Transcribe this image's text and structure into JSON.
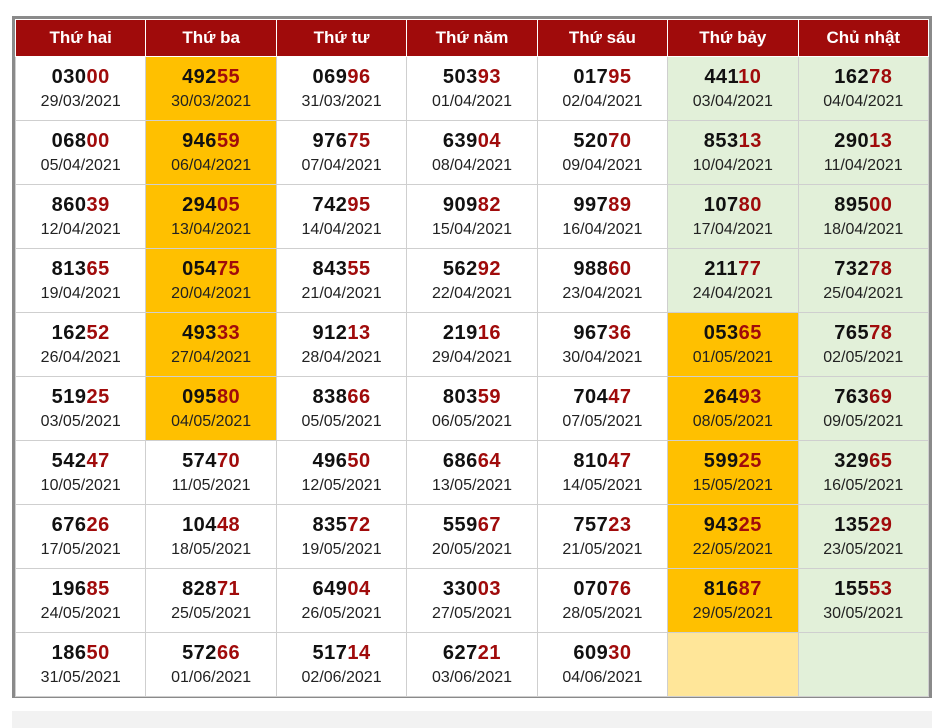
{
  "headers": [
    "Thứ hai",
    "Thứ ba",
    "Thứ tư",
    "Thứ năm",
    "Thứ sáu",
    "Thứ bảy",
    "Chủ nhật"
  ],
  "colors": {
    "header": "#a00b0b",
    "highlight": "#ffc000",
    "weekend": "#e2f0d9",
    "empty_highlight": "#ffe699",
    "tail": "#a00b0b"
  },
  "rows": [
    [
      {
        "head": "030",
        "tail": "00",
        "date": "29/03/2021"
      },
      {
        "head": "492",
        "tail": "55",
        "date": "30/03/2021",
        "hl": true
      },
      {
        "head": "069",
        "tail": "96",
        "date": "31/03/2021"
      },
      {
        "head": "503",
        "tail": "93",
        "date": "01/04/2021"
      },
      {
        "head": "017",
        "tail": "95",
        "date": "02/04/2021"
      },
      {
        "head": "441",
        "tail": "10",
        "date": "03/04/2021"
      },
      {
        "head": "162",
        "tail": "78",
        "date": "04/04/2021"
      }
    ],
    [
      {
        "head": "068",
        "tail": "00",
        "date": "05/04/2021"
      },
      {
        "head": "946",
        "tail": "59",
        "date": "06/04/2021",
        "hl": true
      },
      {
        "head": "976",
        "tail": "75",
        "date": "07/04/2021"
      },
      {
        "head": "639",
        "tail": "04",
        "date": "08/04/2021"
      },
      {
        "head": "520",
        "tail": "70",
        "date": "09/04/2021"
      },
      {
        "head": "853",
        "tail": "13",
        "date": "10/04/2021"
      },
      {
        "head": "290",
        "tail": "13",
        "date": "11/04/2021"
      }
    ],
    [
      {
        "head": "860",
        "tail": "39",
        "date": "12/04/2021"
      },
      {
        "head": "294",
        "tail": "05",
        "date": "13/04/2021",
        "hl": true
      },
      {
        "head": "742",
        "tail": "95",
        "date": "14/04/2021"
      },
      {
        "head": "909",
        "tail": "82",
        "date": "15/04/2021"
      },
      {
        "head": "997",
        "tail": "89",
        "date": "16/04/2021"
      },
      {
        "head": "107",
        "tail": "80",
        "date": "17/04/2021"
      },
      {
        "head": "895",
        "tail": "00",
        "date": "18/04/2021"
      }
    ],
    [
      {
        "head": "813",
        "tail": "65",
        "date": "19/04/2021"
      },
      {
        "head": "054",
        "tail": "75",
        "date": "20/04/2021",
        "hl": true
      },
      {
        "head": "843",
        "tail": "55",
        "date": "21/04/2021"
      },
      {
        "head": "562",
        "tail": "92",
        "date": "22/04/2021"
      },
      {
        "head": "988",
        "tail": "60",
        "date": "23/04/2021"
      },
      {
        "head": "211",
        "tail": "77",
        "date": "24/04/2021"
      },
      {
        "head": "732",
        "tail": "78",
        "date": "25/04/2021"
      }
    ],
    [
      {
        "head": "162",
        "tail": "52",
        "date": "26/04/2021"
      },
      {
        "head": "493",
        "tail": "33",
        "date": "27/04/2021",
        "hl": true
      },
      {
        "head": "912",
        "tail": "13",
        "date": "28/04/2021"
      },
      {
        "head": "219",
        "tail": "16",
        "date": "29/04/2021"
      },
      {
        "head": "967",
        "tail": "36",
        "date": "30/04/2021"
      },
      {
        "head": "053",
        "tail": "65",
        "date": "01/05/2021",
        "hl": true
      },
      {
        "head": "765",
        "tail": "78",
        "date": "02/05/2021"
      }
    ],
    [
      {
        "head": "519",
        "tail": "25",
        "date": "03/05/2021"
      },
      {
        "head": "095",
        "tail": "80",
        "date": "04/05/2021",
        "hl": true
      },
      {
        "head": "838",
        "tail": "66",
        "date": "05/05/2021"
      },
      {
        "head": "803",
        "tail": "59",
        "date": "06/05/2021"
      },
      {
        "head": "704",
        "tail": "47",
        "date": "07/05/2021"
      },
      {
        "head": "264",
        "tail": "93",
        "date": "08/05/2021",
        "hl": true
      },
      {
        "head": "763",
        "tail": "69",
        "date": "09/05/2021"
      }
    ],
    [
      {
        "head": "542",
        "tail": "47",
        "date": "10/05/2021"
      },
      {
        "head": "574",
        "tail": "70",
        "date": "11/05/2021"
      },
      {
        "head": "496",
        "tail": "50",
        "date": "12/05/2021"
      },
      {
        "head": "686",
        "tail": "64",
        "date": "13/05/2021"
      },
      {
        "head": "810",
        "tail": "47",
        "date": "14/05/2021"
      },
      {
        "head": "599",
        "tail": "25",
        "date": "15/05/2021",
        "hl": true
      },
      {
        "head": "329",
        "tail": "65",
        "date": "16/05/2021"
      }
    ],
    [
      {
        "head": "676",
        "tail": "26",
        "date": "17/05/2021"
      },
      {
        "head": "104",
        "tail": "48",
        "date": "18/05/2021"
      },
      {
        "head": "835",
        "tail": "72",
        "date": "19/05/2021"
      },
      {
        "head": "559",
        "tail": "67",
        "date": "20/05/2021"
      },
      {
        "head": "757",
        "tail": "23",
        "date": "21/05/2021"
      },
      {
        "head": "943",
        "tail": "25",
        "date": "22/05/2021",
        "hl": true
      },
      {
        "head": "135",
        "tail": "29",
        "date": "23/05/2021"
      }
    ],
    [
      {
        "head": "196",
        "tail": "85",
        "date": "24/05/2021"
      },
      {
        "head": "828",
        "tail": "71",
        "date": "25/05/2021"
      },
      {
        "head": "649",
        "tail": "04",
        "date": "26/05/2021"
      },
      {
        "head": "330",
        "tail": "03",
        "date": "27/05/2021"
      },
      {
        "head": "070",
        "tail": "76",
        "date": "28/05/2021"
      },
      {
        "head": "816",
        "tail": "87",
        "date": "29/05/2021",
        "hl": true
      },
      {
        "head": "155",
        "tail": "53",
        "date": "30/05/2021"
      }
    ],
    [
      {
        "head": "186",
        "tail": "50",
        "date": "31/05/2021"
      },
      {
        "head": "572",
        "tail": "66",
        "date": "01/06/2021"
      },
      {
        "head": "517",
        "tail": "14",
        "date": "02/06/2021"
      },
      {
        "head": "627",
        "tail": "21",
        "date": "03/06/2021"
      },
      {
        "head": "609",
        "tail": "30",
        "date": "04/06/2021"
      },
      {
        "empty": true,
        "emptyHl": true
      },
      {
        "empty": true
      }
    ]
  ]
}
